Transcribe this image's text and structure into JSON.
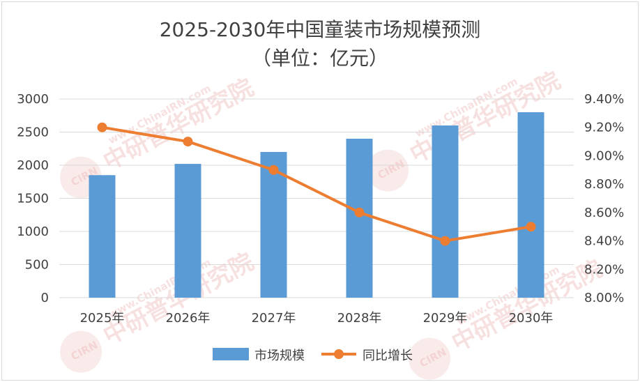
{
  "chart_data": {
    "type": "bar+line",
    "title": "2025-2030年中国童装市场规模预测",
    "subtitle": "（单位：亿元）",
    "categories": [
      "2025年",
      "2026年",
      "2027年",
      "2028年",
      "2029年",
      "2030年"
    ],
    "series": [
      {
        "name": "市场规模",
        "type": "bar",
        "axis": "left",
        "values": [
          1850,
          2020,
          2200,
          2400,
          2600,
          2800
        ]
      },
      {
        "name": "同比增长",
        "type": "line",
        "axis": "right",
        "values": [
          9.2,
          9.1,
          8.9,
          8.6,
          8.4,
          8.5
        ]
      }
    ],
    "y_left": {
      "ylim": [
        0,
        3000
      ],
      "ticks": [
        "0",
        "500",
        "1000",
        "1500",
        "2000",
        "2500",
        "3000"
      ]
    },
    "y_right": {
      "ylim": [
        8.0,
        9.4
      ],
      "ticks": [
        "8.00%",
        "8.20%",
        "8.40%",
        "8.60%",
        "8.80%",
        "9.00%",
        "9.20%",
        "9.40%"
      ]
    },
    "grid": true,
    "legend": "bottom",
    "colors": {
      "bar": "#5b9bd5",
      "line": "#ed7d31",
      "grid": "#d9d9d9",
      "text": "#404040"
    }
  },
  "watermark": {
    "text_en": "www.ChinaIRN.com",
    "text_cn": "中研普华研究院",
    "logo": "CIRN"
  }
}
